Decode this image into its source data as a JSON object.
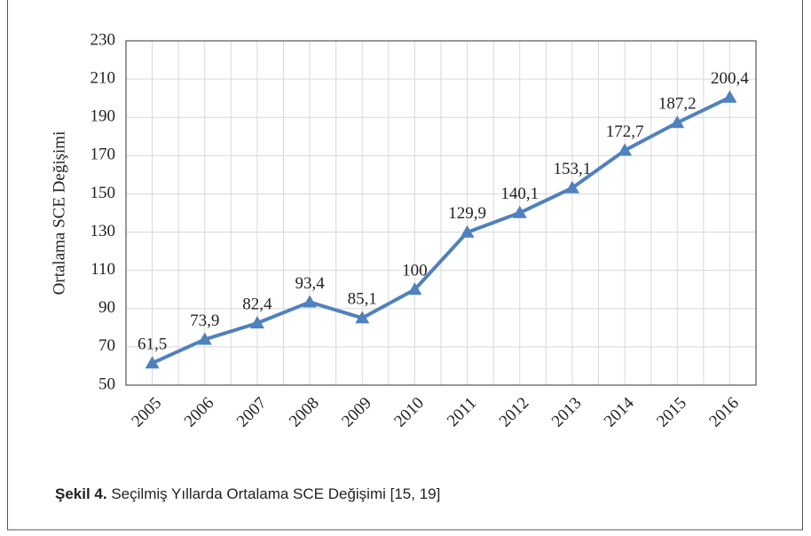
{
  "chart_data": {
    "type": "line",
    "y_label": "Ortalama SCE Değişimi",
    "categories": [
      "2005",
      "2006",
      "2007",
      "2008",
      "2009",
      "2010",
      "2011",
      "2012",
      "2013",
      "2014",
      "2015",
      "2016"
    ],
    "series": [
      {
        "name": "Ortalama SCE",
        "color": "#4f81bd",
        "values": [
          61.5,
          73.9,
          82.4,
          93.4,
          85.1,
          100,
          129.9,
          140.1,
          153.1,
          172.7,
          187.2,
          200.4
        ],
        "value_labels": [
          "61,5",
          "73,9",
          "82,4",
          "93,4",
          "85,1",
          "100",
          "129,9",
          "140,1",
          "153,1",
          "172,7",
          "187,2",
          "200,4"
        ]
      }
    ],
    "ylim": [
      50,
      230
    ],
    "yticks": [
      50,
      70,
      90,
      110,
      130,
      150,
      170,
      190,
      210,
      230
    ],
    "grid": true,
    "caption_label": "Şekil 4.",
    "caption_text": "Seçilmiş Yıllarda Ortalama SCE Değişimi [15, 19]"
  }
}
